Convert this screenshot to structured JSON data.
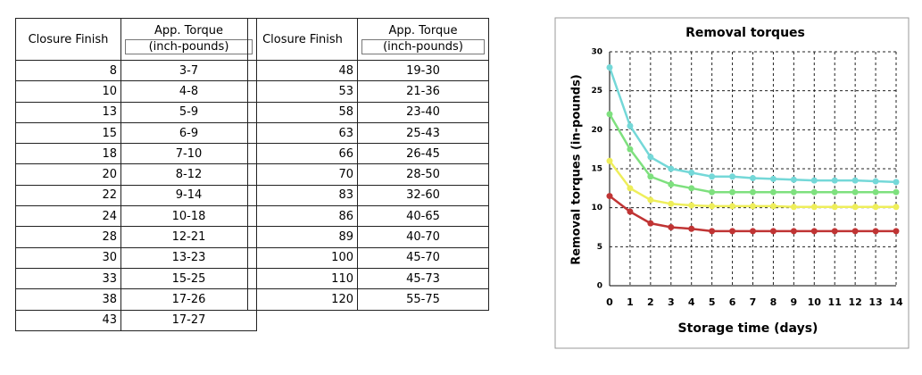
{
  "table": {
    "left": {
      "header": [
        "Closure Finish",
        "App. Torque",
        "(inch-pounds)"
      ],
      "rows": [
        [
          8,
          "3-7"
        ],
        [
          10,
          "4-8"
        ],
        [
          13,
          "5-9"
        ],
        [
          15,
          "6-9"
        ],
        [
          18,
          "7-10"
        ],
        [
          20,
          "8-12"
        ],
        [
          22,
          "9-14"
        ],
        [
          24,
          "10-18"
        ],
        [
          28,
          "12-21"
        ],
        [
          30,
          "13-23"
        ],
        [
          33,
          "15-25"
        ],
        [
          38,
          "17-26"
        ],
        [
          43,
          "17-27"
        ]
      ]
    },
    "right": {
      "header": [
        "Closure Finish",
        "App. Torque",
        "(inch-pounds)"
      ],
      "rows": [
        [
          48,
          "19-30"
        ],
        [
          53,
          "21-36"
        ],
        [
          58,
          "23-40"
        ],
        [
          63,
          "25-43"
        ],
        [
          66,
          "26-45"
        ],
        [
          70,
          "28-50"
        ],
        [
          83,
          "32-60"
        ],
        [
          86,
          "40-65"
        ],
        [
          89,
          "40-70"
        ],
        [
          100,
          "45-70"
        ],
        [
          110,
          "45-73"
        ],
        [
          120,
          "55-75"
        ]
      ]
    }
  },
  "chart_data": {
    "type": "line",
    "title": "Removal torques",
    "x_label": "Storage time (days)",
    "y_label": "Removal torques (in-pounds)",
    "x": [
      0,
      1,
      2,
      3,
      4,
      5,
      6,
      7,
      8,
      9,
      10,
      11,
      12,
      13,
      14
    ],
    "xlim": [
      0,
      14
    ],
    "xticks": [
      0,
      1,
      2,
      3,
      4,
      5,
      6,
      7,
      8,
      9,
      10,
      11,
      12,
      13,
      14
    ],
    "ylim": [
      0,
      30
    ],
    "yticks": [
      0,
      5,
      10,
      15,
      20,
      25,
      30
    ],
    "grid": true,
    "series": [
      {
        "color": "#74d8d8",
        "values": [
          28,
          20.5,
          16.5,
          15,
          14.5,
          14,
          14,
          13.8,
          13.7,
          13.6,
          13.5,
          13.5,
          13.5,
          13.4,
          13.3
        ]
      },
      {
        "color": "#7ee07e",
        "values": [
          22,
          17.5,
          14,
          13,
          12.5,
          12,
          12,
          12,
          12,
          12,
          12,
          12,
          12,
          12,
          12
        ]
      },
      {
        "color": "#eeee5a",
        "values": [
          16,
          12.5,
          11,
          10.5,
          10.3,
          10.2,
          10.2,
          10.2,
          10.2,
          10.1,
          10.1,
          10.1,
          10.1,
          10.1,
          10.1
        ]
      },
      {
        "color": "#c03434",
        "values": [
          11.5,
          9.5,
          8,
          7.5,
          7.3,
          7,
          7,
          7,
          7,
          7,
          7,
          7,
          7,
          7,
          7
        ]
      }
    ]
  }
}
